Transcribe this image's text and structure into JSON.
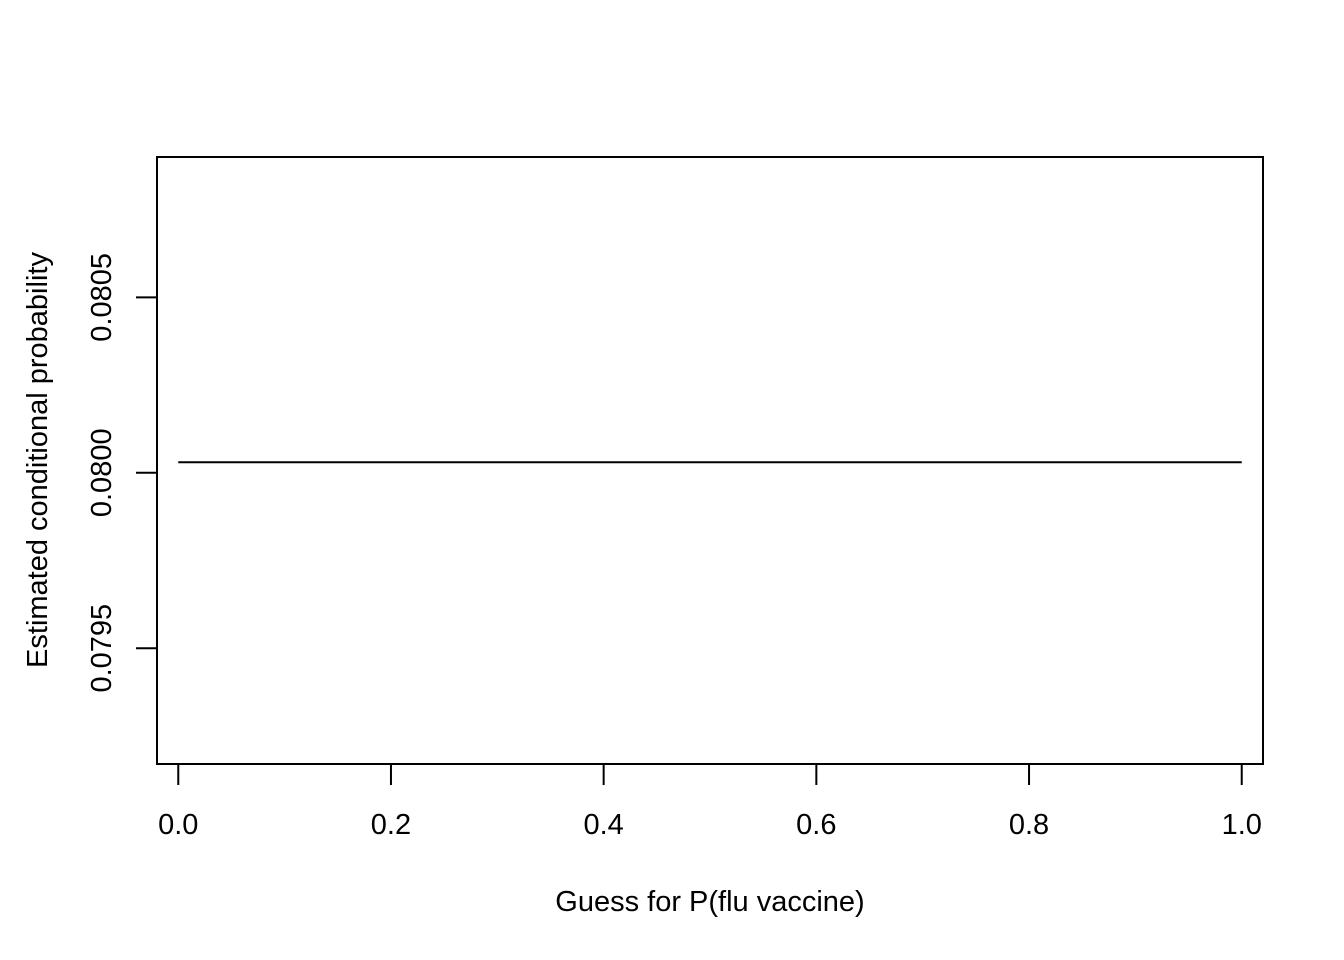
{
  "chart_data": {
    "type": "line",
    "title": "",
    "xlabel": "Guess for P(flu vaccine)",
    "ylabel": "Estimated conditional probability",
    "xlim": [
      -0.02,
      1.02
    ],
    "ylim": [
      0.07917,
      0.0809
    ],
    "x_ticks": [
      0.0,
      0.2,
      0.4,
      0.6,
      0.8,
      1.0
    ],
    "x_tick_labels": [
      "0.0",
      "0.2",
      "0.4",
      "0.6",
      "0.8",
      "1.0"
    ],
    "y_ticks": [
      0.0795,
      0.08,
      0.0805
    ],
    "y_tick_labels": [
      "0.0795",
      "0.0800",
      "0.0805"
    ],
    "grid": false,
    "legend": "none",
    "series": [
      {
        "x": [
          0.0,
          0.25,
          0.5,
          0.75,
          1.0
        ],
        "y": [
          0.08003,
          0.08003,
          0.08003,
          0.08003,
          0.08003
        ],
        "color": "#000000"
      }
    ]
  }
}
